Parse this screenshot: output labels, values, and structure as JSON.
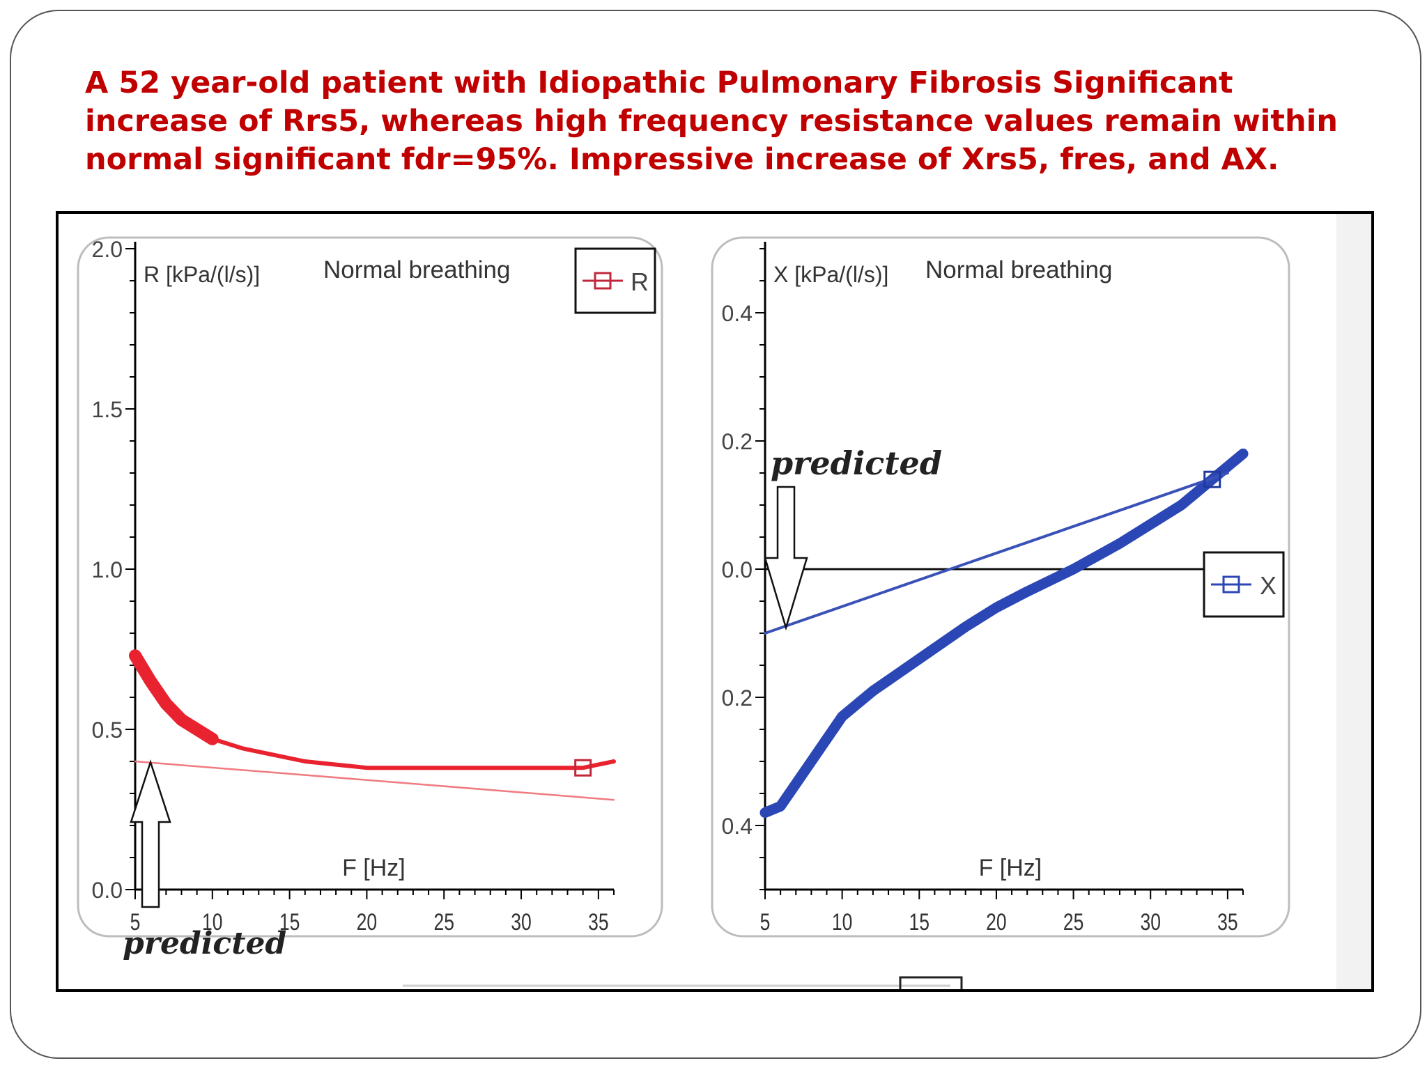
{
  "slide": {
    "title": "A 52 year-old patient with Idiopathic Pulmonary Fibrosis Significant increase of Rrs5, whereas high frequency resistance values remain within normal significant fdr=95%. Impressive increase of Xrs5, fres, and AX."
  },
  "chart_data": [
    {
      "type": "line",
      "title": "Normal breathing",
      "ylabel": "R [kPa/(l/s)]",
      "xlabel": "F [Hz]",
      "xlim": [
        5,
        36
      ],
      "ylim": [
        0,
        2.0
      ],
      "x_ticks": [
        "5",
        "10",
        "15",
        "20",
        "25",
        "30",
        "35"
      ],
      "y_ticks": [
        "0.0",
        "0.5",
        "1.0",
        "1.5",
        "2.0"
      ],
      "legend": {
        "label": "R",
        "position": "top-right"
      },
      "annotation": "predicted",
      "series": [
        {
          "name": "R",
          "color": "#e8222e",
          "x": [
            5,
            6,
            7,
            8,
            9,
            10,
            12,
            14,
            16,
            18,
            20,
            22,
            25,
            28,
            30,
            32,
            34,
            35,
            36
          ],
          "y": [
            0.73,
            0.65,
            0.58,
            0.53,
            0.5,
            0.47,
            0.44,
            0.42,
            0.4,
            0.39,
            0.38,
            0.38,
            0.38,
            0.38,
            0.38,
            0.38,
            0.38,
            0.39,
            0.4
          ]
        },
        {
          "color": "#f07a80",
          "x": [
            5,
            36
          ],
          "y": [
            0.4,
            0.28
          ]
        }
      ]
    },
    {
      "type": "line",
      "title": "Normal breathing",
      "ylabel": "X [kPa/(l/s)]",
      "xlabel": "F [Hz]",
      "xlim": [
        5,
        36
      ],
      "ylim": [
        -0.5,
        0.5
      ],
      "x_ticks": [
        "5",
        "10",
        "15",
        "20",
        "25",
        "30",
        "35"
      ],
      "y_ticks": [
        "0.4",
        "0.2",
        "0.0",
        "0.2",
        "0.4"
      ],
      "legend": {
        "label": "X",
        "position": "middle-right"
      },
      "annotation": "predicted",
      "series": [
        {
          "name": "X",
          "color": "#2b47b5",
          "x": [
            5,
            6,
            8,
            10,
            12,
            15,
            18,
            20,
            22,
            25,
            28,
            30,
            32,
            34,
            36
          ],
          "y": [
            -0.38,
            -0.37,
            -0.3,
            -0.23,
            -0.19,
            -0.14,
            -0.09,
            -0.06,
            -0.035,
            0.0,
            0.04,
            0.07,
            0.1,
            0.14,
            0.18
          ]
        },
        {
          "color": "#3a52b8",
          "x": [
            5,
            35
          ],
          "y": [
            -0.1,
            0.15
          ]
        }
      ]
    }
  ]
}
